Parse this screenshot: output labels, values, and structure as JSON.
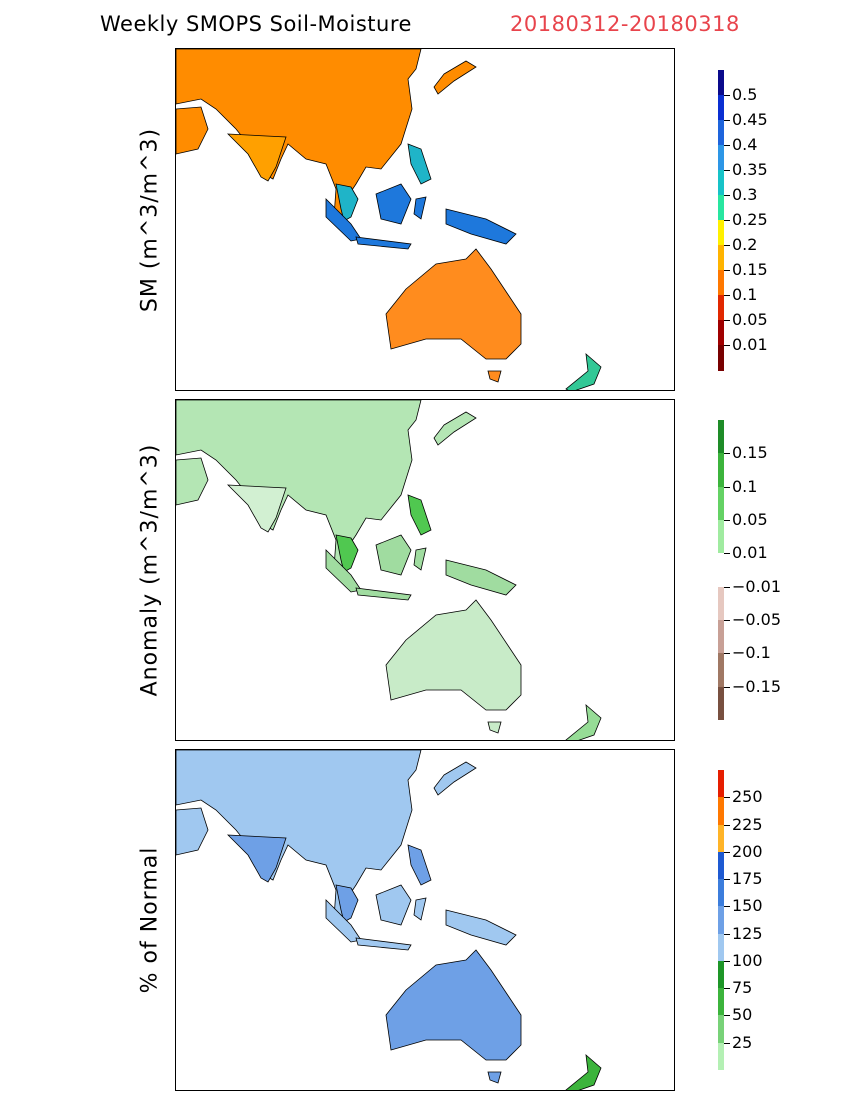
{
  "header": {
    "title": "Weekly SMOPS Soil-Moisture",
    "date_range": "20180312-20180318",
    "date_color": "#e8444c"
  },
  "panels": [
    {
      "id": "sm",
      "ylabel": "SM (m^3/m^3)",
      "colorbar": {
        "labels": [
          "0.5",
          "0.45",
          "0.4",
          "0.35",
          "0.3",
          "0.25",
          "0.2",
          "0.15",
          "0.1",
          "0.05",
          "0.01"
        ],
        "colors": [
          "#0a0a8c",
          "#0a2fd2",
          "#1e64dc",
          "#2d96e6",
          "#17c3c8",
          "#28e6a0",
          "#fff000",
          "#ffb400",
          "#ff7800",
          "#e12800",
          "#a00000",
          "#780000"
        ]
      },
      "map": {
        "region_colors": {
          "asia": "#ff8c00",
          "india": "#ffa000",
          "sea": "#1fb4c8",
          "australia": "#ff8c1e",
          "indonesia": "#1e78dc",
          "nz": "#32c896"
        }
      }
    },
    {
      "id": "anomaly",
      "ylabel": "Anomaly (m^3/m^3)",
      "colorbar": {
        "labels": [
          "0.15",
          "0.1",
          "0.05",
          "0.01",
          "-0.01",
          "-0.05",
          "-0.1",
          "-0.15"
        ],
        "colors": [
          "#1e8c28",
          "#3cb43c",
          "#64d264",
          "#a0eba0",
          "#ffffff",
          "#e6c8c0",
          "#c8a096",
          "#a07864",
          "#785040"
        ]
      },
      "map": {
        "region_colors": {
          "asia": "#b4e6b4",
          "india": "#d2f0d2",
          "sea": "#50c850",
          "australia": "#c8ebc8",
          "indonesia": "#a0dca0",
          "nz": "#96dc96"
        }
      }
    },
    {
      "id": "percent",
      "ylabel": "% of Normal",
      "colorbar": {
        "labels": [
          "250",
          "225",
          "200",
          "175",
          "150",
          "125",
          "100",
          "75",
          "50",
          "25"
        ],
        "colors": [
          "#e61e00",
          "#ff7800",
          "#ffb428",
          "#1e5ad2",
          "#3c7ddc",
          "#6ea0e6",
          "#a0c8f0",
          "#1e9628",
          "#3cb43c",
          "#78d278",
          "#b4f0b4"
        ]
      },
      "map": {
        "region_colors": {
          "asia": "#a0c8f0",
          "india": "#6ea0e6",
          "sea": "#6ea0e6",
          "australia": "#6ea0e6",
          "indonesia": "#a0c8f0",
          "nz": "#3cb43c"
        }
      }
    }
  ]
}
